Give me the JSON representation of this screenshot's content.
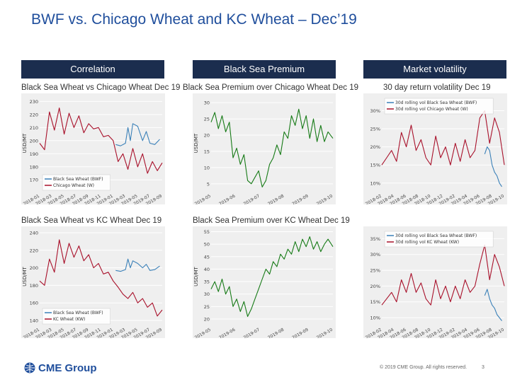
{
  "title": "BWF vs. Chicago Wheat and KC Wheat – Dec’19",
  "headers": [
    "Correlation",
    "Black Sea Premium",
    "Market volatility"
  ],
  "footer": {
    "logo": "CME Group",
    "copyright": "© 2019 CME Group. All rights reserved.",
    "page": "3"
  },
  "colors": {
    "accent": "#1f4e9c",
    "header": "#1b2d4e",
    "blue": "#3a80b8",
    "red": "#a8102a",
    "green": "#167a16"
  },
  "chart_data": [
    {
      "id": "c1",
      "type": "line",
      "title": "Black Sea Wheat vs Chicago Wheat Dec 19",
      "ylabel": "USD/MT",
      "yticks": [
        170,
        180,
        190,
        200,
        210,
        220,
        230
      ],
      "ylim": [
        162,
        234
      ],
      "xticks": [
        "2018-01",
        "2018-03",
        "2018-05",
        "2018-07",
        "2018-09",
        "2018-11",
        "2019-01",
        "2019-03",
        "2019-05",
        "2019-07",
        "2019-09"
      ],
      "legend": "bottom-left",
      "series": [
        {
          "name": "Black Sea Wheat (BWF)",
          "color": "blue",
          "x": [
            0.62,
            0.66,
            0.7,
            0.72,
            0.74,
            0.76,
            0.8,
            0.84,
            0.87,
            0.9,
            0.94,
            0.98
          ],
          "y": [
            197,
            196,
            198,
            210,
            200,
            213,
            211,
            200,
            207,
            198,
            197,
            201
          ]
        },
        {
          "name": "Chicago Wheat (W)",
          "color": "red",
          "x": [
            0,
            0.04,
            0.08,
            0.12,
            0.16,
            0.2,
            0.24,
            0.28,
            0.32,
            0.36,
            0.4,
            0.44,
            0.48,
            0.52,
            0.56,
            0.6,
            0.64,
            0.68,
            0.72,
            0.76,
            0.8,
            0.84,
            0.88,
            0.92,
            0.96,
            1
          ],
          "y": [
            198,
            193,
            222,
            208,
            225,
            205,
            221,
            210,
            219,
            206,
            213,
            209,
            210,
            203,
            204,
            200,
            184,
            190,
            178,
            194,
            180,
            190,
            175,
            184,
            177,
            183
          ]
        }
      ]
    },
    {
      "id": "c2",
      "type": "line",
      "title": "Black Sea Premium over Chicago Wheat Dec 19",
      "ylabel": "USD/MT",
      "yticks": [
        5,
        10,
        15,
        20,
        25,
        30
      ],
      "ylim": [
        3,
        32
      ],
      "xticks": [
        "2019-05",
        "2019-06",
        "2019-07",
        "2019-08",
        "2019-09",
        "2019-10"
      ],
      "legend": "",
      "series": [
        {
          "name": "",
          "color": "green",
          "x": [
            0,
            0.03,
            0.06,
            0.09,
            0.12,
            0.15,
            0.18,
            0.21,
            0.24,
            0.27,
            0.3,
            0.33,
            0.36,
            0.39,
            0.42,
            0.45,
            0.48,
            0.51,
            0.54,
            0.57,
            0.6,
            0.63,
            0.66,
            0.69,
            0.72,
            0.75,
            0.78,
            0.81,
            0.84,
            0.87,
            0.9,
            0.93,
            0.96,
            1
          ],
          "y": [
            24,
            27,
            22,
            26,
            21,
            24,
            13,
            16,
            11,
            14,
            6,
            5,
            7,
            9,
            4,
            6,
            11,
            13,
            17,
            14,
            21,
            19,
            26,
            23,
            28,
            22,
            26,
            19,
            25,
            18,
            23,
            18,
            21,
            19
          ]
        }
      ]
    },
    {
      "id": "c3",
      "type": "line",
      "title": "30 day return volatility Dec 19",
      "ylabel": "",
      "yticks": [
        "10%",
        "15%",
        "20%",
        "25%",
        "30%"
      ],
      "ylim": [
        8,
        34
      ],
      "xticks": [
        "2018-02",
        "2018-04",
        "2018-06",
        "2018-08",
        "2018-10",
        "2018-12",
        "2019-02",
        "2019-04",
        "2019-06",
        "2019-08",
        "2019-10"
      ],
      "legend": "top-left",
      "series": [
        {
          "name": "30d rolling vol Black Sea Wheat (BWF)",
          "color": "blue",
          "x": [
            0.84,
            0.86,
            0.88,
            0.9,
            0.92,
            0.94,
            0.96,
            0.98
          ],
          "y": [
            18,
            20,
            19,
            15,
            13,
            12,
            10,
            9
          ]
        },
        {
          "name": "30d rolling vol Chicago Wheat (W)",
          "color": "red",
          "x": [
            0,
            0.04,
            0.08,
            0.12,
            0.16,
            0.2,
            0.24,
            0.28,
            0.32,
            0.36,
            0.4,
            0.44,
            0.48,
            0.52,
            0.56,
            0.6,
            0.64,
            0.68,
            0.72,
            0.76,
            0.8,
            0.84,
            0.88,
            0.92,
            0.96,
            1
          ],
          "y": [
            15,
            17,
            19,
            16,
            24,
            20,
            26,
            19,
            22,
            17,
            15,
            23,
            17,
            20,
            15,
            21,
            16,
            22,
            17,
            19,
            28,
            30,
            21,
            28,
            24,
            15
          ]
        }
      ]
    },
    {
      "id": "c4",
      "type": "line",
      "title": "Black Sea Wheat vs KC Wheat Dec 19",
      "ylabel": "USD/MT",
      "yticks": [
        140,
        160,
        180,
        200,
        220,
        240
      ],
      "ylim": [
        136,
        244
      ],
      "xticks": [
        "2018-01",
        "2018-03",
        "2018-05",
        "2018-07",
        "2018-09",
        "2018-11",
        "2019-01",
        "2019-03",
        "2019-05",
        "2019-07",
        "2019-09"
      ],
      "legend": "bottom-left",
      "series": [
        {
          "name": "Black Sea Wheat (BWF)",
          "color": "blue",
          "x": [
            0.62,
            0.66,
            0.7,
            0.72,
            0.74,
            0.76,
            0.8,
            0.84,
            0.87,
            0.9,
            0.94,
            0.98
          ],
          "y": [
            197,
            196,
            198,
            210,
            200,
            208,
            205,
            200,
            204,
            197,
            198,
            202
          ]
        },
        {
          "name": "KC Wheat (KW)",
          "color": "red",
          "x": [
            0,
            0.04,
            0.08,
            0.12,
            0.16,
            0.2,
            0.24,
            0.28,
            0.32,
            0.36,
            0.4,
            0.44,
            0.48,
            0.52,
            0.56,
            0.6,
            0.64,
            0.68,
            0.72,
            0.76,
            0.8,
            0.84,
            0.88,
            0.92,
            0.96,
            1
          ],
          "y": [
            185,
            180,
            210,
            195,
            232,
            205,
            228,
            212,
            225,
            208,
            215,
            200,
            205,
            193,
            195,
            185,
            178,
            170,
            165,
            172,
            160,
            165,
            155,
            160,
            145,
            152
          ]
        }
      ]
    },
    {
      "id": "c5",
      "type": "line",
      "title": "Black Sea Premium over KC Wheat Dec 19",
      "ylabel": "USD/MT",
      "yticks": [
        20,
        25,
        30,
        35,
        40,
        45,
        50,
        55
      ],
      "ylim": [
        18,
        56
      ],
      "xticks": [
        "2019-05",
        "2019-06",
        "2019-07",
        "2019-08",
        "2019-09",
        "2019-10"
      ],
      "legend": "",
      "series": [
        {
          "name": "",
          "color": "green",
          "x": [
            0,
            0.03,
            0.06,
            0.09,
            0.12,
            0.15,
            0.18,
            0.21,
            0.24,
            0.27,
            0.3,
            0.33,
            0.36,
            0.39,
            0.42,
            0.45,
            0.48,
            0.51,
            0.54,
            0.57,
            0.6,
            0.63,
            0.66,
            0.69,
            0.72,
            0.75,
            0.78,
            0.81,
            0.84,
            0.87,
            0.9,
            0.93,
            0.96,
            1
          ],
          "y": [
            32,
            35,
            31,
            36,
            30,
            33,
            25,
            28,
            23,
            27,
            21,
            24,
            28,
            32,
            36,
            40,
            38,
            43,
            41,
            46,
            44,
            48,
            46,
            51,
            47,
            52,
            49,
            53,
            48,
            51,
            47,
            50,
            52,
            49
          ]
        }
      ]
    },
    {
      "id": "c6",
      "type": "line",
      "title": "",
      "ylabel": "",
      "yticks": [
        "10%",
        "15%",
        "20%",
        "25%",
        "30%",
        "35%"
      ],
      "ylim": [
        8,
        38
      ],
      "xticks": [
        "2018-02",
        "2018-04",
        "2018-06",
        "2018-08",
        "2018-10",
        "2018-12",
        "2019-02",
        "2019-04",
        "2019-06",
        "2019-08",
        "2019-10"
      ],
      "legend": "top-left",
      "series": [
        {
          "name": "30d rolling vol Black Sea Wheat (BWF)",
          "color": "blue",
          "x": [
            0.84,
            0.86,
            0.88,
            0.9,
            0.92,
            0.94,
            0.96,
            0.98
          ],
          "y": [
            17,
            19,
            16,
            14,
            13,
            11,
            10,
            9
          ]
        },
        {
          "name": "30d rolling vol KC Wheat (KW)",
          "color": "red",
          "x": [
            0,
            0.04,
            0.08,
            0.12,
            0.16,
            0.2,
            0.24,
            0.28,
            0.32,
            0.36,
            0.4,
            0.44,
            0.48,
            0.52,
            0.56,
            0.6,
            0.64,
            0.68,
            0.72,
            0.76,
            0.8,
            0.84,
            0.88,
            0.92,
            0.96,
            1
          ],
          "y": [
            14,
            16,
            18,
            15,
            22,
            18,
            24,
            18,
            21,
            16,
            14,
            22,
            16,
            20,
            15,
            20,
            16,
            22,
            18,
            20,
            27,
            33,
            22,
            30,
            26,
            20
          ]
        }
      ]
    }
  ]
}
